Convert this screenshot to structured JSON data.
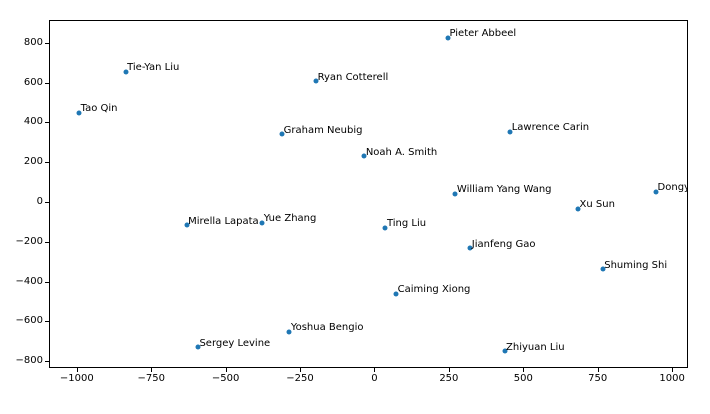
{
  "chart_data": {
    "type": "scatter",
    "title": "",
    "xlabel": "",
    "ylabel": "",
    "grid": false,
    "legend": null,
    "marker_color": "#1f77b4",
    "text_color": "#000000",
    "spine_color": "#000000",
    "background_color": "#ffffff",
    "xlim": [
      -1090,
      1050
    ],
    "ylim": [
      -829,
      910
    ],
    "x_ticks": [
      -1000,
      -750,
      -500,
      -250,
      0,
      250,
      500,
      750,
      1000
    ],
    "y_ticks": [
      -800,
      -600,
      -400,
      -200,
      0,
      200,
      400,
      600,
      800
    ],
    "points": [
      {
        "label": "Tao Qin",
        "x": -992,
        "y": 449
      },
      {
        "label": "Tie-Yan Liu",
        "x": -836,
        "y": 655
      },
      {
        "label": "Ryan Cotterell",
        "x": -196,
        "y": 606
      },
      {
        "label": "Pieter Abbeel",
        "x": 247,
        "y": 827
      },
      {
        "label": "Graham Neubig",
        "x": -310,
        "y": 342
      },
      {
        "label": "Lawrence Carin",
        "x": 456,
        "y": 354
      },
      {
        "label": "Noah A. Smith",
        "x": -34,
        "y": 230
      },
      {
        "label": "William Yang Wang",
        "x": 272,
        "y": 41
      },
      {
        "label": "Dongy",
        "x": 946,
        "y": 51
      },
      {
        "label": "Xu Sun",
        "x": 684,
        "y": -33
      },
      {
        "label": "Mirella Lapata",
        "x": -631,
        "y": -116
      },
      {
        "label": "Yue Zhang",
        "x": -377,
        "y": -104
      },
      {
        "label": "Ting Liu",
        "x": 37,
        "y": -130
      },
      {
        "label": "Jianfeng Gao",
        "x": 322,
        "y": -232
      },
      {
        "label": "Shuming Shi",
        "x": 767,
        "y": -337
      },
      {
        "label": "Caiming Xiong",
        "x": 73,
        "y": -462
      },
      {
        "label": "Yoshua Bengio",
        "x": -286,
        "y": -653
      },
      {
        "label": "Sergey Levine",
        "x": -593,
        "y": -729
      },
      {
        "label": "Zhiyuan Liu",
        "x": 437,
        "y": -751
      }
    ]
  }
}
